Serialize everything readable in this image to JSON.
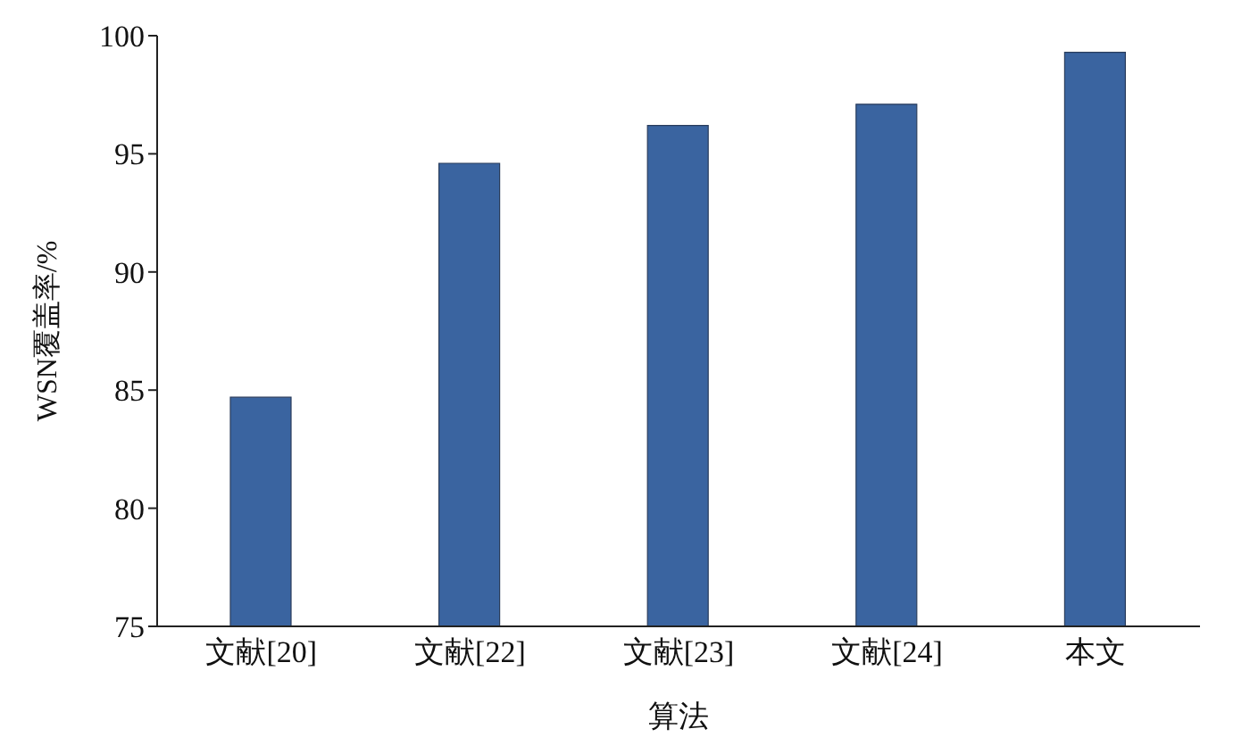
{
  "chart_data": {
    "type": "bar",
    "xlabel": "算法",
    "ylabel": "WSN覆盖率/%",
    "categories": [
      "文献[20]",
      "文献[22]",
      "文献[23]",
      "文献[24]",
      "本文"
    ],
    "series": [
      {
        "color": "#3a64a0",
        "values": [
          84.7,
          94.6,
          96.2,
          97.1,
          99.3
        ]
      }
    ],
    "ylim": [
      75,
      100
    ],
    "yticks": [
      75,
      80,
      85,
      90,
      95,
      100
    ],
    "grid": false,
    "legend": false
  }
}
